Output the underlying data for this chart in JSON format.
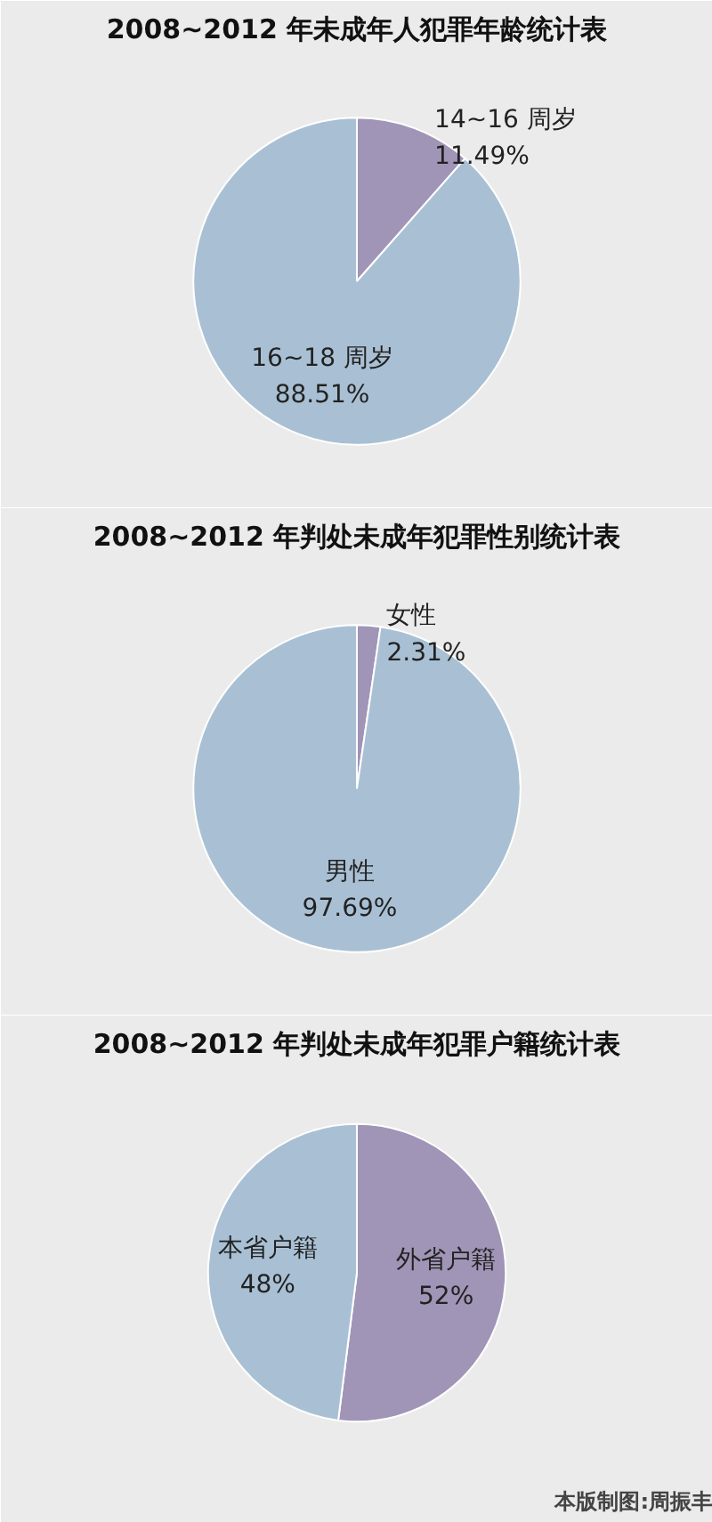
{
  "chart_data": [
    {
      "type": "pie",
      "title": "2008~2012 年未成年人犯罪年龄统计表",
      "categories": [
        "14~16 周岁",
        "16~18 周岁"
      ],
      "values": [
        11.49,
        88.51
      ],
      "colors": [
        "#a095b6",
        "#a9c0d4"
      ],
      "value_labels": [
        "11.49%",
        "88.51%"
      ],
      "legend": false
    },
    {
      "type": "pie",
      "title": "2008~2012 年判处未成年犯罪性别统计表",
      "categories": [
        "女性",
        "男性"
      ],
      "values": [
        2.31,
        97.69
      ],
      "colors": [
        "#a095b6",
        "#a9c0d4"
      ],
      "value_labels": [
        "2.31%",
        "97.69%"
      ],
      "legend": false
    },
    {
      "type": "pie",
      "title": "2008~2012 年判处未成年犯罪户籍统计表",
      "categories": [
        "外省户籍",
        "本省户籍"
      ],
      "values": [
        52,
        48
      ],
      "colors": [
        "#a095b6",
        "#a9c0d4"
      ],
      "value_labels": [
        "52%",
        "48%"
      ],
      "legend": false,
      "annotations": [
        "本版制图:周振丰"
      ]
    }
  ]
}
